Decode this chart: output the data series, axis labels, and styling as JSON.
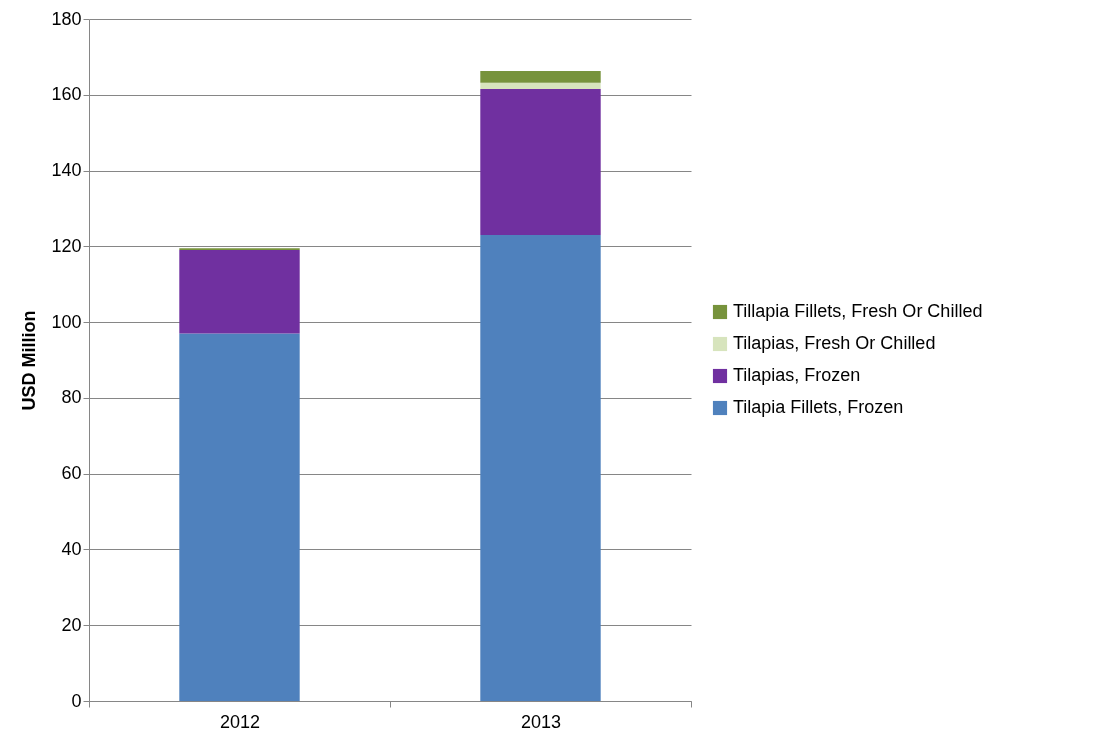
{
  "chart_data": {
    "type": "bar",
    "stacked": true,
    "ylabel": "USD Million",
    "categories": [
      "2012",
      "2013"
    ],
    "series": [
      {
        "name": "Tilapia Fillets, Frozen",
        "color": "#4f81bd",
        "values": [
          97,
          123
        ]
      },
      {
        "name": "Tilapias, Frozen",
        "color": "#7030a0",
        "values": [
          22,
          38.5
        ]
      },
      {
        "name": "Tilapias, Fresh Or Chilled",
        "color": "#d7e4bd",
        "values": [
          0,
          1.7
        ]
      },
      {
        "name": "Tillapia Fillets, Fresh Or Chilled",
        "color": "#77933c",
        "values": [
          0.5,
          3.1
        ]
      }
    ],
    "ylim": [
      0,
      180
    ],
    "yticks": [
      0,
      20,
      40,
      60,
      80,
      100,
      120,
      140,
      160,
      180
    ],
    "grid": "y",
    "legend": "right"
  }
}
